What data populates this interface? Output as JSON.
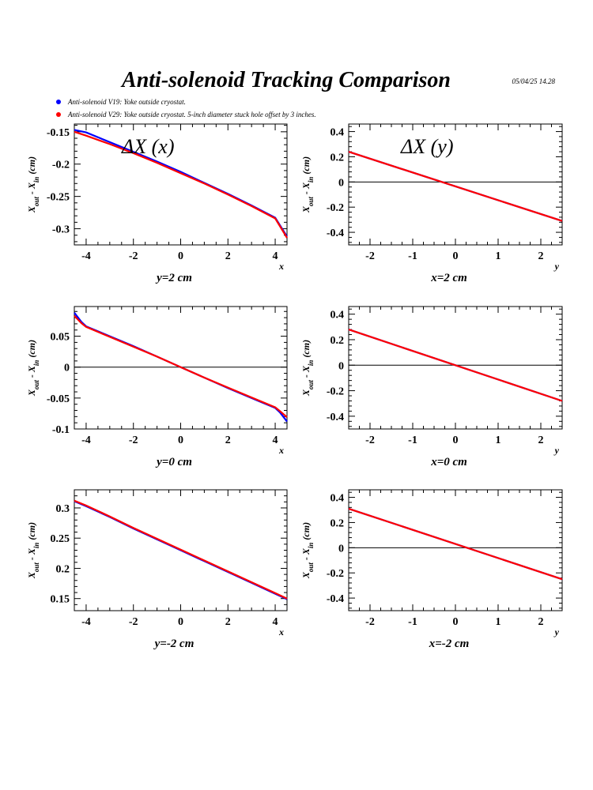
{
  "page": {
    "title": "Anti-solenoid Tracking Comparison",
    "timestamp": "05/04/25   14.28"
  },
  "legend": [
    {
      "label": "Anti-solenoid V19: Yoke outside cryostat.",
      "color": "#0000ff"
    },
    {
      "label": "Anti-solenoid V29: Yoke outside cryostat. 5-inch diameter stuck hole offset by 3 inches.",
      "color": "#ff0000"
    }
  ],
  "chart_data": [
    {
      "type": "line",
      "panel_label": "ΔX (x)",
      "condition": "y=2 cm",
      "xlabel": "x",
      "ylabel": "X_out - X_in (cm)",
      "xlim": [
        -4.5,
        4.5
      ],
      "ylim": [
        -0.325,
        -0.138
      ],
      "xticks": [
        -4,
        -2,
        0,
        2,
        4
      ],
      "xtick_labels": [
        "-4",
        "-2",
        "0",
        "2",
        "4"
      ],
      "yticks": [
        -0.15,
        -0.2,
        -0.25,
        -0.3
      ],
      "ytick_labels": [
        "-0.15",
        "-0.2",
        "-0.25",
        "-0.3"
      ],
      "zero_line": false,
      "series": [
        {
          "color": "#0000ff",
          "x": [
            -4.5,
            -4,
            -3,
            -2,
            -1,
            0,
            1,
            2,
            3,
            4,
            4.5
          ],
          "y": [
            -0.147,
            -0.151,
            -0.166,
            -0.181,
            -0.196,
            -0.212,
            -0.229,
            -0.246,
            -0.264,
            -0.283,
            -0.312
          ]
        },
        {
          "color": "#ff0000",
          "x": [
            -4.5,
            -4,
            -3,
            -2,
            -1,
            0,
            1,
            2,
            3,
            4,
            4.5
          ],
          "y": [
            -0.15,
            -0.156,
            -0.169,
            -0.183,
            -0.198,
            -0.214,
            -0.23,
            -0.247,
            -0.265,
            -0.284,
            -0.314
          ]
        }
      ]
    },
    {
      "type": "line",
      "panel_label": "ΔX (y)",
      "condition": "x=2 cm",
      "xlabel": "y",
      "ylabel": "X_out - X_in (cm)",
      "xlim": [
        -2.5,
        2.5
      ],
      "ylim": [
        -0.5,
        0.46
      ],
      "xticks": [
        -2,
        -1,
        0,
        1,
        2
      ],
      "xtick_labels": [
        "-2",
        "-1",
        "0",
        "1",
        "2"
      ],
      "yticks": [
        0.4,
        0.2,
        0,
        -0.2,
        -0.4
      ],
      "ytick_labels": [
        "0.4",
        "0.2",
        "0",
        "-0.2",
        "-0.4"
      ],
      "zero_line": true,
      "series": [
        {
          "color": "#0000ff",
          "x": [
            -2.5,
            2.5
          ],
          "y": [
            0.24,
            -0.31
          ]
        },
        {
          "color": "#ff0000",
          "x": [
            -2.5,
            2.5
          ],
          "y": [
            0.24,
            -0.31
          ]
        }
      ]
    },
    {
      "type": "line",
      "panel_label": "",
      "condition": "y=0 cm",
      "xlabel": "x",
      "ylabel": "X_out - X_in (cm)",
      "xlim": [
        -4.5,
        4.5
      ],
      "ylim": [
        -0.1,
        0.098
      ],
      "xticks": [
        -4,
        -2,
        0,
        2,
        4
      ],
      "xtick_labels": [
        "-4",
        "-2",
        "0",
        "2",
        "4"
      ],
      "yticks": [
        0.05,
        0,
        -0.05,
        -0.1
      ],
      "ytick_labels": [
        "0.05",
        "0",
        "-0.05",
        "-0.1"
      ],
      "zero_line": true,
      "series": [
        {
          "color": "#0000ff",
          "x": [
            -4.5,
            -4.2,
            -4,
            -3,
            -2,
            -1,
            0,
            1,
            2,
            3,
            4,
            4.2,
            4.5
          ],
          "y": [
            0.088,
            0.073,
            0.066,
            0.05,
            0.034,
            0.017,
            0.0,
            -0.017,
            -0.034,
            -0.05,
            -0.066,
            -0.073,
            -0.088
          ]
        },
        {
          "color": "#ff0000",
          "x": [
            -4.5,
            -4.2,
            -4,
            -3,
            -2,
            -1,
            0,
            1,
            2,
            3,
            4,
            4.2,
            4.5
          ],
          "y": [
            0.083,
            0.071,
            0.065,
            0.049,
            0.033,
            0.017,
            0.0,
            -0.017,
            -0.033,
            -0.049,
            -0.065,
            -0.071,
            -0.081
          ]
        }
      ]
    },
    {
      "type": "line",
      "panel_label": "",
      "condition": "x=0 cm",
      "xlabel": "y",
      "ylabel": "X_out - X_in (cm)",
      "xlim": [
        -2.5,
        2.5
      ],
      "ylim": [
        -0.5,
        0.46
      ],
      "xticks": [
        -2,
        -1,
        0,
        1,
        2
      ],
      "xtick_labels": [
        "-2",
        "-1",
        "0",
        "1",
        "2"
      ],
      "yticks": [
        0.4,
        0.2,
        0,
        -0.2,
        -0.4
      ],
      "ytick_labels": [
        "0.4",
        "0.2",
        "0",
        "-0.2",
        "-0.4"
      ],
      "zero_line": true,
      "series": [
        {
          "color": "#0000ff",
          "x": [
            -2.5,
            2.5
          ],
          "y": [
            0.28,
            -0.28
          ]
        },
        {
          "color": "#ff0000",
          "x": [
            -2.5,
            2.5
          ],
          "y": [
            0.28,
            -0.28
          ]
        }
      ]
    },
    {
      "type": "line",
      "panel_label": "",
      "condition": "y=-2 cm",
      "xlabel": "x",
      "ylabel": "X_out - X_in (cm)",
      "xlim": [
        -4.5,
        4.5
      ],
      "ylim": [
        0.13,
        0.33
      ],
      "xticks": [
        -4,
        -2,
        0,
        2,
        4
      ],
      "xtick_labels": [
        "-4",
        "-2",
        "0",
        "2",
        "4"
      ],
      "yticks": [
        0.3,
        0.25,
        0.2,
        0.15
      ],
      "ytick_labels": [
        "0.3",
        "0.25",
        "0.2",
        "0.15"
      ],
      "zero_line": false,
      "series": [
        {
          "color": "#0000ff",
          "x": [
            -4.5,
            -4,
            -3,
            -2,
            -1,
            0,
            1,
            2,
            3,
            4,
            4.5
          ],
          "y": [
            0.311,
            0.303,
            0.285,
            0.266,
            0.248,
            0.23,
            0.212,
            0.194,
            0.176,
            0.158,
            0.149
          ]
        },
        {
          "color": "#ff0000",
          "x": [
            -4.5,
            -4,
            -3,
            -2,
            -1,
            0,
            1,
            2,
            3,
            4,
            4.5
          ],
          "y": [
            0.312,
            0.304,
            0.286,
            0.267,
            0.249,
            0.231,
            0.213,
            0.195,
            0.177,
            0.159,
            0.15
          ]
        }
      ]
    },
    {
      "type": "line",
      "panel_label": "",
      "condition": "x=-2 cm",
      "xlabel": "y",
      "ylabel": "X_out - X_in (cm)",
      "xlim": [
        -2.5,
        2.5
      ],
      "ylim": [
        -0.5,
        0.46
      ],
      "xticks": [
        -2,
        -1,
        0,
        1,
        2
      ],
      "xtick_labels": [
        "-2",
        "-1",
        "0",
        "1",
        "2"
      ],
      "yticks": [
        0.4,
        0.2,
        0,
        -0.2,
        -0.4
      ],
      "ytick_labels": [
        "0.4",
        "0.2",
        "0",
        "-0.2",
        "-0.4"
      ],
      "zero_line": true,
      "series": [
        {
          "color": "#0000ff",
          "x": [
            -2.5,
            2.5
          ],
          "y": [
            0.31,
            -0.25
          ]
        },
        {
          "color": "#ff0000",
          "x": [
            -2.5,
            2.5
          ],
          "y": [
            0.31,
            -0.25
          ]
        }
      ]
    }
  ]
}
